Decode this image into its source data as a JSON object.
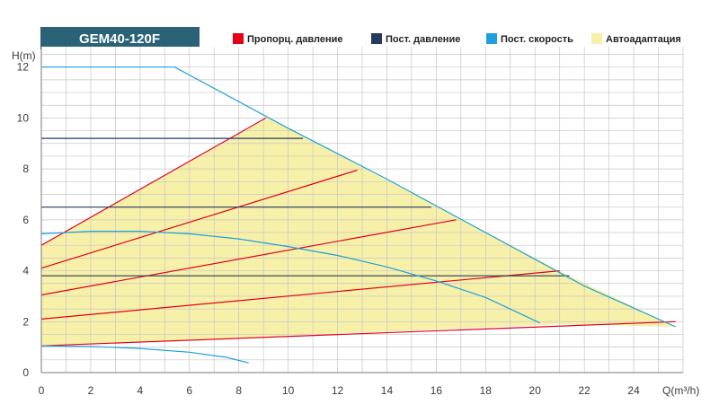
{
  "chart_data": {
    "type": "line",
    "title": "GEM40-120F",
    "xlabel": "Q(m³/h)",
    "ylabel": "H(m)",
    "xlim": [
      0,
      26
    ],
    "ylim": [
      0,
      12.8
    ],
    "x_ticks": [
      0,
      2,
      4,
      6,
      8,
      10,
      12,
      14,
      16,
      18,
      20,
      22,
      24
    ],
    "y_ticks": [
      0,
      2,
      4,
      6,
      8,
      10,
      12
    ],
    "grid": true,
    "legend_position": "top",
    "legend": [
      {
        "label": "Пропорц. давление",
        "color": "#e3001b"
      },
      {
        "label": "Пост. давление",
        "color": "#243a5e"
      },
      {
        "label": "Пост. скорость",
        "color": "#1ea0dc"
      },
      {
        "label": "Автоадаптация",
        "color": "#f7f0a8"
      }
    ],
    "autoadaptation_area": [
      [
        0,
        5.0
      ],
      [
        9.2,
        10.0
      ],
      [
        21.4,
        3.8
      ],
      [
        25.7,
        1.8
      ],
      [
        21.0,
        1.9
      ],
      [
        0,
        1.05
      ]
    ],
    "series": [
      {
        "group": "Пропорц. давление",
        "color": "#e3001b",
        "points": [
          [
            0,
            5.0
          ],
          [
            9.1,
            10.0
          ]
        ]
      },
      {
        "group": "Пропорц. давление",
        "color": "#e3001b",
        "points": [
          [
            0,
            4.1
          ],
          [
            12.8,
            7.95
          ]
        ]
      },
      {
        "group": "Пропорц. давление",
        "color": "#e3001b",
        "points": [
          [
            0,
            3.05
          ],
          [
            16.8,
            6.0
          ]
        ]
      },
      {
        "group": "Пропорц. давление",
        "color": "#e3001b",
        "points": [
          [
            0,
            2.1
          ],
          [
            21.0,
            4.0
          ]
        ]
      },
      {
        "group": "Пропорц. давление",
        "color": "#e3001b",
        "points": [
          [
            0,
            1.05
          ],
          [
            25.7,
            2.0
          ]
        ]
      },
      {
        "group": "Пост. давление",
        "color": "#243a5e",
        "points": [
          [
            0,
            9.2
          ],
          [
            10.6,
            9.2
          ]
        ]
      },
      {
        "group": "Пост. давление",
        "color": "#243a5e",
        "points": [
          [
            0,
            6.5
          ],
          [
            15.8,
            6.5
          ]
        ]
      },
      {
        "group": "Пост. давление",
        "color": "#243a5e",
        "points": [
          [
            0,
            3.8
          ],
          [
            21.4,
            3.8
          ]
        ]
      },
      {
        "group": "Пост. скорость",
        "color": "#1ea0dc",
        "points": [
          [
            0,
            12.0
          ],
          [
            5.4,
            12.0
          ],
          [
            10,
            9.6
          ],
          [
            14,
            7.6
          ],
          [
            18,
            5.5
          ],
          [
            22,
            3.4
          ],
          [
            25.7,
            1.8
          ]
        ]
      },
      {
        "group": "Пост. скорость",
        "color": "#1ea0dc",
        "points": [
          [
            0,
            5.45
          ],
          [
            2,
            5.55
          ],
          [
            4,
            5.55
          ],
          [
            6,
            5.45
          ],
          [
            8,
            5.25
          ],
          [
            10,
            4.95
          ],
          [
            12,
            4.6
          ],
          [
            14,
            4.15
          ],
          [
            16,
            3.6
          ],
          [
            18,
            2.95
          ],
          [
            20.2,
            1.95
          ]
        ]
      },
      {
        "group": "Пост. скорость",
        "color": "#1ea0dc",
        "points": [
          [
            0,
            1.05
          ],
          [
            2,
            1.03
          ],
          [
            4,
            0.95
          ],
          [
            6,
            0.8
          ],
          [
            7.5,
            0.6
          ],
          [
            8.4,
            0.38
          ]
        ]
      }
    ]
  }
}
